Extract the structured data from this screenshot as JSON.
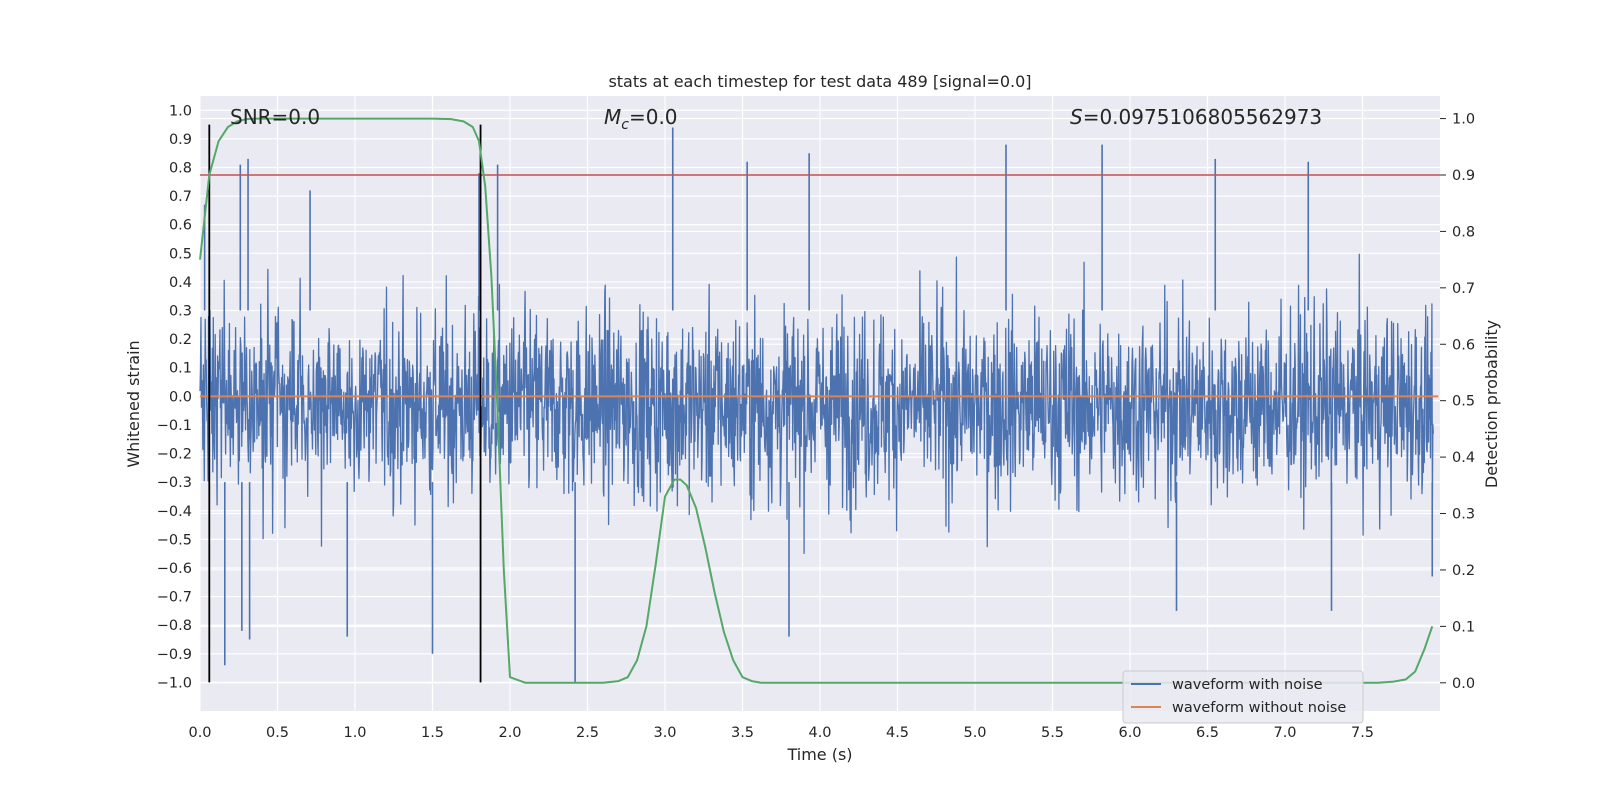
{
  "chart_data": {
    "type": "line",
    "title": "stats at each timestep for test data 489 [signal=0.0]",
    "xlabel": "Time (s)",
    "ylabel": "Whitened strain",
    "y2label": "Detection probability",
    "xlim": [
      0.0,
      8.0
    ],
    "ylim": [
      -1.1,
      1.05
    ],
    "y2lim": [
      -0.05,
      1.04
    ],
    "x_ticks": [
      "0.0",
      "0.5",
      "1.0",
      "1.5",
      "2.0",
      "2.5",
      "3.0",
      "3.5",
      "4.0",
      "4.5",
      "5.0",
      "5.5",
      "6.0",
      "6.5",
      "7.0",
      "7.5"
    ],
    "y_ticks": [
      "1.0",
      "0.9",
      "0.8",
      "0.7",
      "0.6",
      "0.5",
      "0.4",
      "0.3",
      "0.2",
      "0.1",
      "0.0",
      "−0.1",
      "−0.2",
      "−0.3",
      "−0.4",
      "−0.5",
      "−0.6",
      "−0.7",
      "−0.8",
      "−0.9",
      "−1.0"
    ],
    "y2_ticks": [
      "1.0",
      "0.9",
      "0.8",
      "0.7",
      "0.6",
      "0.5",
      "0.4",
      "0.3",
      "0.2",
      "0.1",
      "0.0"
    ],
    "grid": true,
    "legend_placement": "lower-right",
    "annotations": {
      "snr": "SNR=0.0",
      "mc_symbol": "M",
      "mc_sub": "c",
      "mc_value": "=0.0",
      "s_symbol": "S",
      "s_value": "=0.0975106805562973"
    },
    "threshold": 0.9,
    "vertical_lines_x": [
      0.06,
      1.81
    ],
    "vertical_lines_ylim": [
      -1.0,
      0.95
    ],
    "series": [
      {
        "name": "waveform with noise",
        "color": "#4c72b0",
        "kind": "noise",
        "typical_range": [
          -0.42,
          0.36
        ],
        "spikes_top": [
          {
            "x": 0.03,
            "y": 0.67
          },
          {
            "x": 0.26,
            "y": 0.81
          },
          {
            "x": 0.31,
            "y": 0.83
          },
          {
            "x": 0.71,
            "y": 0.72
          },
          {
            "x": 1.8,
            "y": 0.78
          },
          {
            "x": 1.92,
            "y": 0.81
          },
          {
            "x": 3.05,
            "y": 0.94
          },
          {
            "x": 3.53,
            "y": 0.82
          },
          {
            "x": 3.93,
            "y": 0.85
          },
          {
            "x": 5.2,
            "y": 0.88
          },
          {
            "x": 5.82,
            "y": 0.88
          },
          {
            "x": 6.55,
            "y": 0.83
          },
          {
            "x": 7.15,
            "y": 0.82
          }
        ],
        "spikes_bottom": [
          {
            "x": 0.16,
            "y": -0.94
          },
          {
            "x": 0.27,
            "y": -0.82
          },
          {
            "x": 0.32,
            "y": -0.85
          },
          {
            "x": 0.95,
            "y": -0.84
          },
          {
            "x": 1.5,
            "y": -0.9
          },
          {
            "x": 2.42,
            "y": -1.0
          },
          {
            "x": 3.8,
            "y": -0.84
          },
          {
            "x": 6.3,
            "y": -0.75
          },
          {
            "x": 7.3,
            "y": -0.75
          },
          {
            "x": 7.95,
            "y": -0.63
          }
        ]
      },
      {
        "name": "waveform without noise",
        "color": "#dd8452",
        "kind": "flat",
        "value": 0.0
      },
      {
        "name": "detection probability",
        "color": "#55a868",
        "axis": "right",
        "x": [
          0.0,
          0.06,
          0.12,
          0.18,
          0.24,
          0.3,
          0.36,
          0.5,
          1.0,
          1.5,
          1.62,
          1.7,
          1.76,
          1.8,
          1.84,
          1.88,
          1.92,
          1.96,
          2.0,
          2.1,
          2.2,
          2.6,
          2.7,
          2.76,
          2.82,
          2.88,
          2.94,
          3.0,
          3.06,
          3.1,
          3.14,
          3.2,
          3.26,
          3.32,
          3.38,
          3.44,
          3.5,
          3.56,
          3.62,
          3.8,
          4.5,
          6.0,
          7.0,
          7.6,
          7.7,
          7.78,
          7.84,
          7.9,
          7.95
        ],
        "values": [
          0.75,
          0.9,
          0.96,
          0.985,
          0.995,
          0.999,
          1.0,
          1.0,
          1.0,
          1.0,
          0.999,
          0.995,
          0.985,
          0.96,
          0.88,
          0.72,
          0.48,
          0.2,
          0.01,
          0.0,
          0.0,
          0.0,
          0.003,
          0.01,
          0.04,
          0.1,
          0.21,
          0.33,
          0.36,
          0.36,
          0.35,
          0.31,
          0.24,
          0.16,
          0.09,
          0.04,
          0.01,
          0.003,
          0.0,
          0.0,
          0.0,
          0.0,
          0.0,
          0.0,
          0.002,
          0.006,
          0.02,
          0.06,
          0.1
        ]
      }
    ]
  }
}
